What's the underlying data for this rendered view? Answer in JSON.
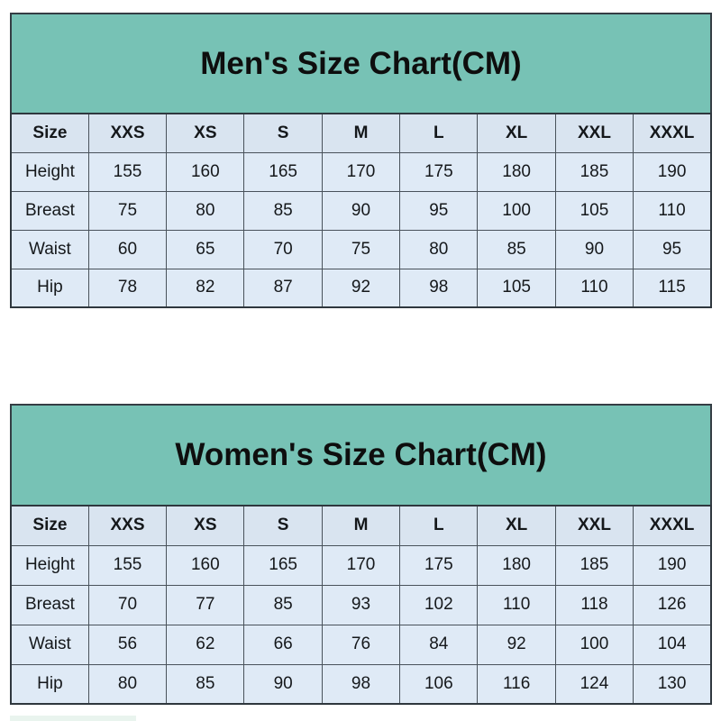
{
  "colors": {
    "banner_teal": "#77c2b5",
    "header_row_bg": "#d9e4f0",
    "cell_bg": "#dfeaf6",
    "grid_border": "#49525b",
    "outer_border": "#2f373e",
    "text": "#15181b"
  },
  "men": {
    "title": "Men's Size Chart(CM)",
    "columns": [
      "Size",
      "XXS",
      "XS",
      "S",
      "M",
      "L",
      "XL",
      "XXL",
      "XXXL"
    ],
    "rows": [
      {
        "label": "Height",
        "values": [
          "155",
          "160",
          "165",
          "170",
          "175",
          "180",
          "185",
          "190"
        ]
      },
      {
        "label": "Breast",
        "values": [
          "75",
          "80",
          "85",
          "90",
          "95",
          "100",
          "105",
          "110"
        ]
      },
      {
        "label": "Waist",
        "values": [
          "60",
          "65",
          "70",
          "75",
          "80",
          "85",
          "90",
          "95"
        ]
      },
      {
        "label": "Hip",
        "values": [
          "78",
          "82",
          "87",
          "92",
          "98",
          "105",
          "110",
          "115"
        ]
      }
    ]
  },
  "women": {
    "title": "Women's Size Chart(CM)",
    "columns": [
      "Size",
      "XXS",
      "XS",
      "S",
      "M",
      "L",
      "XL",
      "XXL",
      "XXXL"
    ],
    "rows": [
      {
        "label": "Height",
        "values": [
          "155",
          "160",
          "165",
          "170",
          "175",
          "180",
          "185",
          "190"
        ]
      },
      {
        "label": "Breast",
        "values": [
          "70",
          "77",
          "85",
          "93",
          "102",
          "110",
          "118",
          "126"
        ]
      },
      {
        "label": "Waist",
        "values": [
          "56",
          "62",
          "66",
          "76",
          "84",
          "92",
          "100",
          "104"
        ]
      },
      {
        "label": "Hip",
        "values": [
          "80",
          "85",
          "90",
          "98",
          "106",
          "116",
          "124",
          "130"
        ]
      }
    ]
  }
}
